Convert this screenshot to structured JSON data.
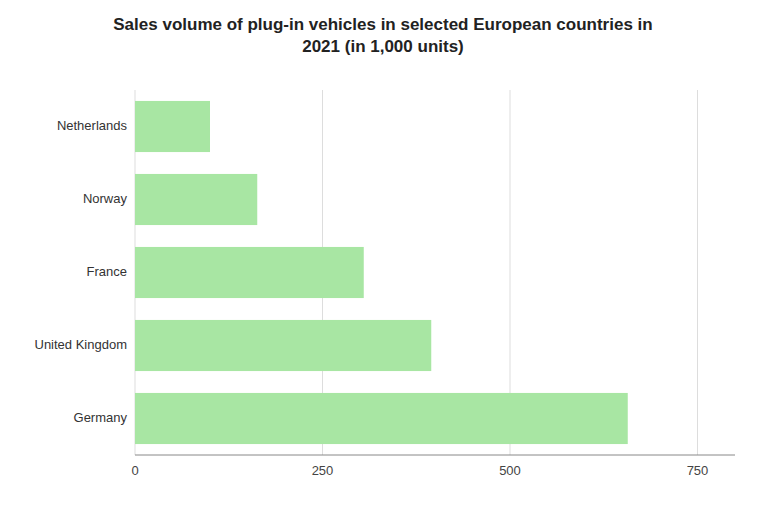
{
  "chart_data": {
    "type": "bar",
    "orientation": "horizontal",
    "title": "Sales volume of plug-in vehicles in selected European countries in\n2021 (in 1,000 units)",
    "categories": [
      "Germany",
      "United Kingdom",
      "France",
      "Norway",
      "Netherlands"
    ],
    "values": [
      657,
      395,
      305,
      163,
      100
    ],
    "color": "#a8e6a3",
    "xlim": [
      0,
      800
    ],
    "xticks": [
      0,
      250,
      500,
      750
    ],
    "grid": true
  }
}
